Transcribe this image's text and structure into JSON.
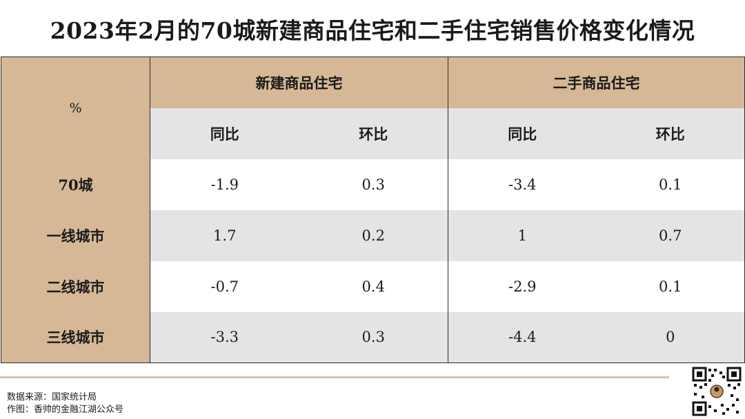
{
  "title": "2023年2月的70城新建商品住宅和二手住宅销售价格变化情况",
  "table": {
    "corner": "%",
    "groups": [
      "新建商品住宅",
      "二手商品住宅"
    ],
    "sub_headers": [
      "同比",
      "环比",
      "同比",
      "环比"
    ],
    "rows": [
      {
        "label": "70城",
        "values": [
          "-1.9",
          "0.3",
          "-3.4",
          "0.1"
        ]
      },
      {
        "label": "一线城市",
        "values": [
          "1.7",
          "0.2",
          "1",
          "0.7"
        ]
      },
      {
        "label": "二线城市",
        "values": [
          "-0.7",
          "0.4",
          "-2.9",
          "0.1"
        ]
      },
      {
        "label": "三线城市",
        "values": [
          "-3.3",
          "0.3",
          "-4.4",
          "0"
        ]
      }
    ]
  },
  "footer": {
    "source": "数据来源：国家统计局",
    "author": "作图：香帅的金融江湖公众号"
  },
  "colors": {
    "header_tan": "#d6b896",
    "row_gray": "#e4e4e4",
    "rule_tan": "#d9c2a4"
  },
  "qr_icon": "qr-code-icon"
}
